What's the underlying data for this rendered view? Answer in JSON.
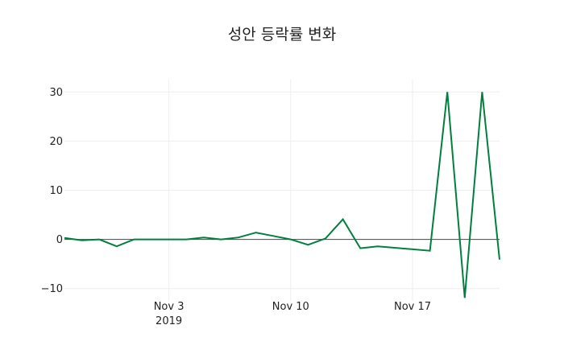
{
  "chart_data": {
    "type": "line",
    "title": "성안 등락률 변화",
    "xlabel": "",
    "ylabel": "",
    "x": [
      "2019-10-28",
      "2019-10-29",
      "2019-10-30",
      "2019-10-31",
      "2019-11-01",
      "2019-11-02",
      "2019-11-03",
      "2019-11-04",
      "2019-11-05",
      "2019-11-06",
      "2019-11-07",
      "2019-11-08",
      "2019-11-09",
      "2019-11-10",
      "2019-11-11",
      "2019-11-12",
      "2019-11-13",
      "2019-11-14",
      "2019-11-15",
      "2019-11-18",
      "2019-11-19",
      "2019-11-20",
      "2019-11-21",
      "2019-11-22"
    ],
    "series": [
      {
        "name": "등락률",
        "color": "#007f3f",
        "values": [
          0.3,
          -0.2,
          0.0,
          -1.4,
          0.0,
          0.0,
          0.0,
          0.0,
          0.4,
          0.0,
          0.4,
          1.4,
          0.7,
          0.0,
          -1.1,
          0.2,
          4.1,
          -1.8,
          -1.4,
          -2.3,
          30.0,
          -11.9,
          30.0,
          -4.1
        ]
      }
    ],
    "xlim": [
      "2019-10-28",
      "2019-11-22"
    ],
    "ylim": [
      -12.5,
      32.5
    ],
    "x_ticks": [
      {
        "date": "2019-11-03",
        "label": "Nov 3",
        "sublabel": "2019"
      },
      {
        "date": "2019-11-10",
        "label": "Nov 10",
        "sublabel": ""
      },
      {
        "date": "2019-11-17",
        "label": "Nov 17",
        "sublabel": ""
      }
    ],
    "y_ticks": [
      30,
      20,
      10,
      0,
      -10
    ],
    "y_tick_labels": [
      "30",
      "20",
      "10",
      "0",
      "−10"
    ],
    "grid": true,
    "zero_line": true,
    "legend": false
  }
}
